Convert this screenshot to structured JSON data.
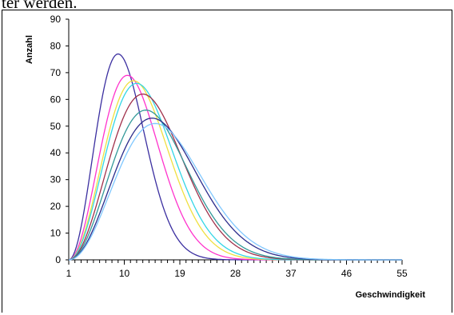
{
  "page": {
    "top_text": "ter werden."
  },
  "chart_data": {
    "type": "line",
    "title": "",
    "xlabel": "Geschwindigkeit",
    "ylabel": "Anzahl",
    "xlim": [
      1,
      55
    ],
    "ylim": [
      0,
      90
    ],
    "x_ticks": [
      1,
      10,
      19,
      28,
      37,
      46,
      55
    ],
    "y_ticks": [
      0,
      10,
      20,
      30,
      40,
      50,
      60,
      70,
      80,
      90
    ],
    "grid": false,
    "legend": "none",
    "series": [
      {
        "color": "#3b2fa0",
        "peak_x": 9,
        "peak_y": 77
      },
      {
        "color": "#ff33cc",
        "peak_x": 10.5,
        "peak_y": 69
      },
      {
        "color": "#f0e040",
        "peak_x": 11.5,
        "peak_y": 67
      },
      {
        "color": "#33d6e6",
        "peak_x": 12,
        "peak_y": 66
      },
      {
        "color": "#a0304a",
        "peak_x": 13,
        "peak_y": 62
      },
      {
        "color": "#339999",
        "peak_x": 13.5,
        "peak_y": 56
      },
      {
        "color": "#2d2d8c",
        "peak_x": 14.5,
        "peak_y": 53
      },
      {
        "color": "#80c8ff",
        "peak_x": 15,
        "peak_y": 51
      }
    ]
  }
}
